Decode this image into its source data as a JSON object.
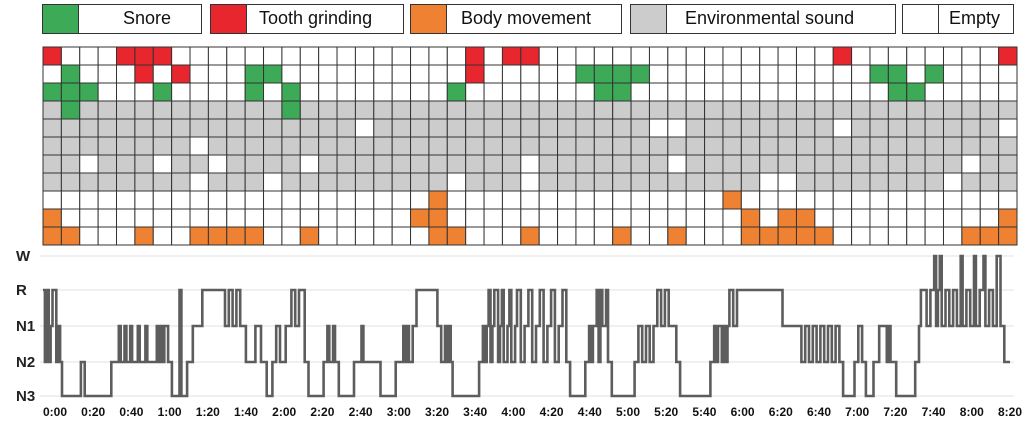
{
  "legend": [
    {
      "label": "Snore",
      "color": "#3daa57"
    },
    {
      "label": "Tooth grinding",
      "color": "#e8262e"
    },
    {
      "label": "Body movement",
      "color": "#ee8232"
    },
    {
      "label": "Environmental sound",
      "color": "#cccccc"
    },
    {
      "label": "Empty",
      "color": "#ffffff"
    }
  ],
  "chart_data": [
    {
      "type": "heatmap",
      "description_of_values": "S=Snore, T=Tooth grinding, B=Body movement, E=Environmental sound, O=Empty",
      "rows": [
        "TOOOTTTOOOOOOOOOOOOOOOOTOTTOOOOOOOOOOOOOOOOTOOOOOOOOT",
        "OSOOOTOTOOOSSOOOOOOOOOOTOOOOOSSSSOOOOOOOOOOOOSSOSOOOO",
        "SSSOOOSOOOOSOSOOOOOOOOSOOOOOOOSSOOOOOOOOOOOOOOSSOOOOO",
        "ESEEEEEEEEEEESEEEEEEEEEEEEEEEEEEEEEEEEEEEEEEEEEEEEEEE",
        "EEEEEEEEEEEEEEEEEOEEEEEEEEEEEEEEEOOEEEEEEEEOEEEEEEEEO",
        "EEEEEEEEOEEEEEEEEEEEEEEEEEEEEEEEEEEEEEEEEEEEEEEEEEEEE",
        "EEOEEEOEEOEEEEOEEEEEEEEEEEOEEEEEEEOEEEEEEEEEEEEEEEOEE",
        "EEEEEEEEOEEEOEEEEEEEEEOEEEOEEEEEEEEEEEEOOEEEEEEEEOEEE",
        "OOOOOOOOOOOOOOOOOOOOOBOOOOOOOOOOOOOOOBOOOOOOOOOOOOOOO",
        "BOOOOOOOOOOOOOOOOOOOBBOOOOOOOOOOOOOOOOBOBBOOOOOOOOOOB",
        "BBOOOBOOBBBBOOBOOOOOOBBOOOBOOOOBOOBOOOBBBBBOOOOOOOBBB"
      ]
    },
    {
      "type": "line",
      "title": "",
      "xlabel": "",
      "ylabel": "",
      "stages": [
        "W",
        "R",
        "N1",
        "N2",
        "N3"
      ],
      "x_ticks": [
        "0:00",
        "0:20",
        "0:40",
        "1:00",
        "1:20",
        "1:40",
        "2:00",
        "2:20",
        "2:40",
        "3:00",
        "3:20",
        "3:40",
        "4:00",
        "4:20",
        "4:40",
        "5:00",
        "5:20",
        "5:40",
        "6:00",
        "6:20",
        "6:40",
        "7:00",
        "7:20",
        "7:40",
        "8:00",
        "8:20"
      ],
      "x_range_minutes": [
        0,
        510
      ],
      "description": "hypnogram: sleep stage level (0=W,1=R,2=N1,3=N2,4=N3) versus time in minutes; rapid oscillations approximated",
      "segments": [
        [
          0,
          1
        ],
        [
          1,
          3
        ],
        [
          2,
          1
        ],
        [
          3,
          3
        ],
        [
          4,
          2
        ],
        [
          5,
          1
        ],
        [
          7,
          3
        ],
        [
          8,
          2
        ],
        [
          9,
          3
        ],
        [
          10,
          4
        ],
        [
          20,
          3
        ],
        [
          22,
          4
        ],
        [
          36,
          3
        ],
        [
          40,
          2
        ],
        [
          41,
          3
        ],
        [
          43,
          2
        ],
        [
          44,
          3
        ],
        [
          46,
          2
        ],
        [
          47,
          3
        ],
        [
          50,
          2
        ],
        [
          51,
          3
        ],
        [
          54,
          2
        ],
        [
          55,
          3
        ],
        [
          60,
          2
        ],
        [
          61,
          3
        ],
        [
          62,
          2
        ],
        [
          63,
          3
        ],
        [
          64,
          2
        ],
        [
          66,
          3
        ],
        [
          68,
          4
        ],
        [
          72,
          1
        ],
        [
          73,
          4
        ],
        [
          76,
          3
        ],
        [
          79,
          2
        ],
        [
          84,
          1
        ],
        [
          96,
          2
        ],
        [
          98,
          1
        ],
        [
          100,
          2
        ],
        [
          102,
          1
        ],
        [
          104,
          2
        ],
        [
          107,
          3
        ],
        [
          112,
          2
        ],
        [
          115,
          3
        ],
        [
          118,
          4
        ],
        [
          121,
          3
        ],
        [
          123,
          2
        ],
        [
          125,
          3
        ],
        [
          128,
          2
        ],
        [
          131,
          1
        ],
        [
          133,
          2
        ],
        [
          135,
          1
        ],
        [
          138,
          3
        ],
        [
          140,
          4
        ],
        [
          148,
          3
        ],
        [
          150,
          2
        ],
        [
          151,
          3
        ],
        [
          153,
          2
        ],
        [
          154,
          3
        ],
        [
          156,
          4
        ],
        [
          164,
          3
        ],
        [
          168,
          2
        ],
        [
          169,
          3
        ],
        [
          178,
          4
        ],
        [
          186,
          3
        ],
        [
          190,
          2
        ],
        [
          191,
          3
        ],
        [
          192,
          2
        ],
        [
          193,
          3
        ],
        [
          195,
          2
        ],
        [
          197,
          1
        ],
        [
          208,
          2
        ],
        [
          210,
          3
        ],
        [
          212,
          2
        ],
        [
          213,
          3
        ],
        [
          214,
          2
        ],
        [
          215,
          3
        ],
        [
          216,
          4
        ],
        [
          230,
          3
        ],
        [
          232,
          2
        ],
        [
          233,
          3
        ],
        [
          234,
          2
        ],
        [
          235,
          1
        ],
        [
          236,
          3
        ],
        [
          237,
          2
        ],
        [
          238,
          1
        ],
        [
          240,
          3
        ],
        [
          241,
          2
        ],
        [
          242,
          1
        ],
        [
          243,
          3
        ],
        [
          245,
          2
        ],
        [
          246,
          1
        ],
        [
          247,
          3
        ],
        [
          249,
          2
        ],
        [
          250,
          1
        ],
        [
          252,
          3
        ],
        [
          254,
          2
        ],
        [
          256,
          1
        ],
        [
          258,
          3
        ],
        [
          260,
          2
        ],
        [
          262,
          1
        ],
        [
          264,
          3
        ],
        [
          266,
          2
        ],
        [
          268,
          1
        ],
        [
          270,
          3
        ],
        [
          272,
          2
        ],
        [
          274,
          1
        ],
        [
          276,
          3
        ],
        [
          278,
          4
        ],
        [
          286,
          3
        ],
        [
          288,
          2
        ],
        [
          289,
          3
        ],
        [
          290,
          2
        ],
        [
          292,
          1
        ],
        [
          293,
          3
        ],
        [
          294,
          1
        ],
        [
          295,
          2
        ],
        [
          297,
          1
        ],
        [
          298,
          3
        ],
        [
          300,
          4
        ],
        [
          312,
          3
        ],
        [
          314,
          2
        ],
        [
          316,
          3
        ],
        [
          318,
          2
        ],
        [
          320,
          3
        ],
        [
          322,
          2
        ],
        [
          324,
          1
        ],
        [
          326,
          2
        ],
        [
          328,
          1
        ],
        [
          330,
          2
        ],
        [
          334,
          3
        ],
        [
          336,
          4
        ],
        [
          352,
          3
        ],
        [
          354,
          2
        ],
        [
          355,
          3
        ],
        [
          356,
          2
        ],
        [
          358,
          3
        ],
        [
          359,
          2
        ],
        [
          360,
          3
        ],
        [
          361,
          2
        ],
        [
          362,
          1
        ],
        [
          364,
          2
        ],
        [
          366,
          1
        ],
        [
          368,
          1
        ],
        [
          390,
          2
        ],
        [
          400,
          3
        ],
        [
          402,
          2
        ],
        [
          404,
          3
        ],
        [
          406,
          2
        ],
        [
          408,
          3
        ],
        [
          410,
          2
        ],
        [
          412,
          3
        ],
        [
          414,
          2
        ],
        [
          416,
          3
        ],
        [
          418,
          2
        ],
        [
          420,
          3
        ],
        [
          422,
          4
        ],
        [
          428,
          3
        ],
        [
          430,
          2
        ],
        [
          432,
          3
        ],
        [
          434,
          4
        ],
        [
          438,
          3
        ],
        [
          441,
          2
        ],
        [
          445,
          3
        ],
        [
          446,
          2
        ],
        [
          447,
          3
        ],
        [
          450,
          4
        ],
        [
          460,
          3
        ],
        [
          462,
          2
        ],
        [
          463,
          1
        ],
        [
          466,
          2
        ],
        [
          468,
          1
        ],
        [
          470,
          0
        ],
        [
          471,
          2
        ],
        [
          472,
          1
        ],
        [
          473,
          0
        ],
        [
          474,
          2
        ],
        [
          476,
          1
        ],
        [
          478,
          2
        ],
        [
          480,
          1
        ],
        [
          482,
          2
        ],
        [
          484,
          0
        ],
        [
          485,
          2
        ],
        [
          487,
          1
        ],
        [
          489,
          2
        ],
        [
          491,
          0
        ],
        [
          492,
          2
        ],
        [
          494,
          1
        ],
        [
          496,
          0
        ],
        [
          497,
          2
        ],
        [
          499,
          1
        ],
        [
          501,
          2
        ],
        [
          503,
          0
        ],
        [
          505,
          2
        ],
        [
          507,
          3
        ],
        [
          510,
          3
        ]
      ]
    }
  ]
}
